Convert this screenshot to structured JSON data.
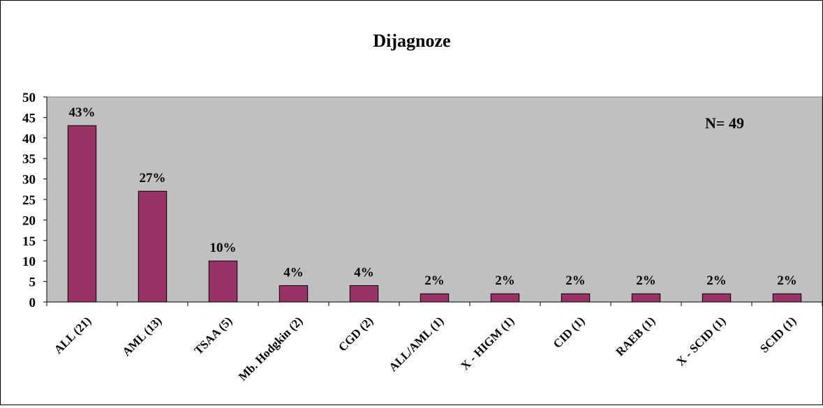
{
  "chart_data": {
    "type": "bar",
    "title": "Dijagnoze",
    "annotation": "N= 49",
    "categories": [
      "ALL (21)",
      "AML (13)",
      "TSAA (5)",
      "Mb. Hodgkin (2)",
      "CGD (2)",
      "ALL/AML (1)",
      "X - HIGM (1)",
      "CID (1)",
      "RAEB (1)",
      "X - SCID (1)",
      "SCID (1)"
    ],
    "values": [
      43,
      27,
      10,
      4,
      4,
      2,
      2,
      2,
      2,
      2,
      2
    ],
    "data_labels": [
      "43%",
      "27%",
      "10%",
      "4%",
      "4%",
      "2%",
      "2%",
      "2%",
      "2%",
      "2%",
      "2%"
    ],
    "ylim": [
      0,
      50
    ],
    "yticks": [
      0,
      5,
      10,
      15,
      20,
      25,
      30,
      35,
      40,
      45,
      50
    ],
    "xlabel": "",
    "ylabel": "",
    "grid": false,
    "colors": {
      "bar": "#993366",
      "plot_background": "#c0c0c0",
      "outline": "#000000"
    }
  }
}
